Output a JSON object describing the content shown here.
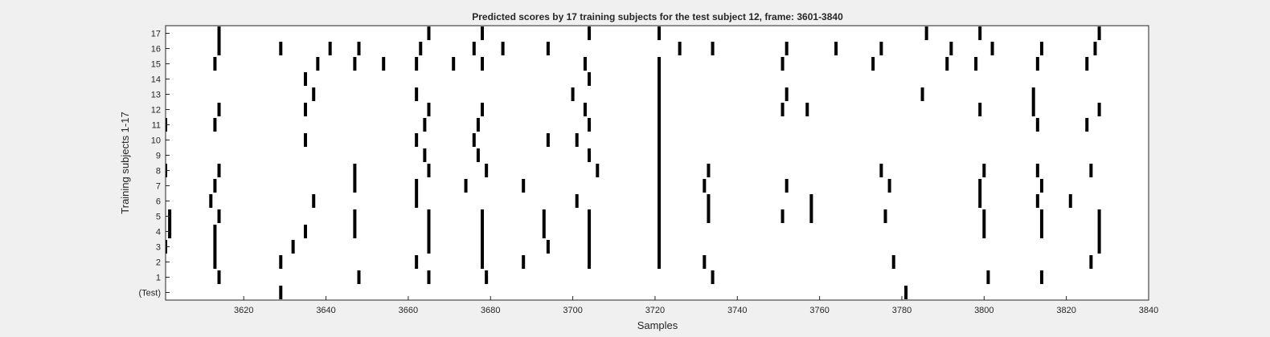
{
  "chart_data": {
    "type": "raster",
    "title": "Predicted scores by 17 training subjects for the test subject 12, frame: 3601-3840",
    "xlabel": "Samples",
    "ylabel": "Training subjects 1-17",
    "xlim": [
      3601,
      3840
    ],
    "xticks": [
      3620,
      3640,
      3660,
      3680,
      3700,
      3720,
      3740,
      3760,
      3780,
      3800,
      3820,
      3840
    ],
    "rows": [
      "(Test)",
      "1",
      "2",
      "3",
      "4",
      "5",
      "6",
      "7",
      "8",
      "9",
      "10",
      "11",
      "12",
      "13",
      "14",
      "15",
      "16",
      "17"
    ],
    "events": {
      "(Test)": [
        3629,
        3781
      ],
      "1": [
        3614,
        3648,
        3665,
        3679,
        3734,
        3801,
        3814
      ],
      "2": [
        3613,
        3629,
        3662,
        3678,
        3688,
        3704,
        3721,
        3732,
        3778,
        3826
      ],
      "3": [
        3601,
        3613,
        3632,
        3665,
        3678,
        3694,
        3704,
        3721,
        3828
      ],
      "4": [
        3602,
        3613,
        3635,
        3647,
        3665,
        3678,
        3693,
        3704,
        3721,
        3800,
        3814,
        3828
      ],
      "5": [
        3602,
        3614,
        3647,
        3665,
        3678,
        3693,
        3704,
        3721,
        3733,
        3751,
        3758,
        3776,
        3800,
        3814,
        3828
      ],
      "6": [
        3612,
        3637,
        3662,
        3701,
        3721,
        3733,
        3758,
        3799,
        3813,
        3821
      ],
      "7": [
        3613,
        3647,
        3662,
        3674,
        3688,
        3721,
        3732,
        3752,
        3777,
        3799,
        3814
      ],
      "8": [
        3601,
        3614,
        3647,
        3665,
        3679,
        3706,
        3721,
        3733,
        3775,
        3800,
        3813,
        3826
      ],
      "9": [
        3664,
        3677,
        3704,
        3721
      ],
      "10": [
        3635,
        3662,
        3676,
        3694,
        3701,
        3721
      ],
      "11": [
        3601,
        3613,
        3664,
        3677,
        3704,
        3721,
        3813,
        3825
      ],
      "12": [
        3614,
        3635,
        3665,
        3678,
        3703,
        3721,
        3751,
        3757,
        3799,
        3812,
        3828
      ],
      "13": [
        3637,
        3662,
        3700,
        3721,
        3752,
        3785,
        3812
      ],
      "14": [
        3635,
        3704,
        3721
      ],
      "15": [
        3613,
        3638,
        3647,
        3654,
        3662,
        3671,
        3678,
        3703,
        3721,
        3751,
        3773,
        3791,
        3798,
        3813,
        3825
      ],
      "16": [
        3614,
        3629,
        3641,
        3648,
        3663,
        3676,
        3683,
        3694,
        3726,
        3734,
        3752,
        3764,
        3775,
        3792,
        3802,
        3814,
        3827
      ],
      "17": [
        3614,
        3665,
        3678,
        3704,
        3721,
        3786,
        3799,
        3828
      ]
    },
    "mark_color": "#000000",
    "background": "#ffffff",
    "grid": false,
    "legend": false
  }
}
